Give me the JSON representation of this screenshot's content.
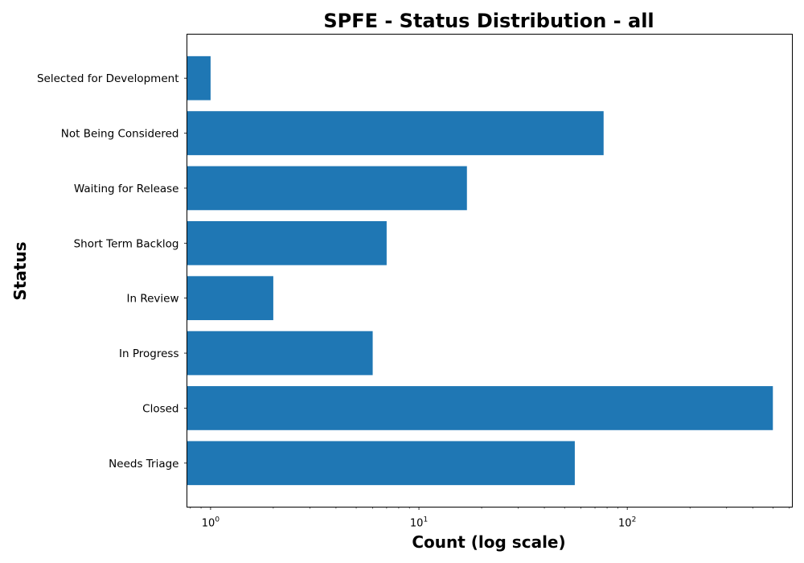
{
  "chart_data": {
    "type": "bar",
    "orientation": "horizontal",
    "title": "SPFE - Status Distribution - all",
    "xlabel": "Count (log scale)",
    "ylabel": "Status",
    "x_scale": "log",
    "xlim": [
      0.77,
      620
    ],
    "x_ticks": [
      {
        "value": 1,
        "base": "10",
        "exp": "0"
      },
      {
        "value": 10,
        "base": "10",
        "exp": "1"
      },
      {
        "value": 100,
        "base": "10",
        "exp": "2"
      }
    ],
    "categories": [
      "Needs Triage",
      "Closed",
      "In Progress",
      "In Review",
      "Short Term Backlog",
      "Waiting for Release",
      "Not Being Considered",
      "Selected for Development"
    ],
    "values": [
      56,
      500,
      6,
      2,
      7,
      17,
      77,
      1
    ],
    "bar_color": "#1f77b4",
    "grid": false,
    "legend": "none"
  }
}
